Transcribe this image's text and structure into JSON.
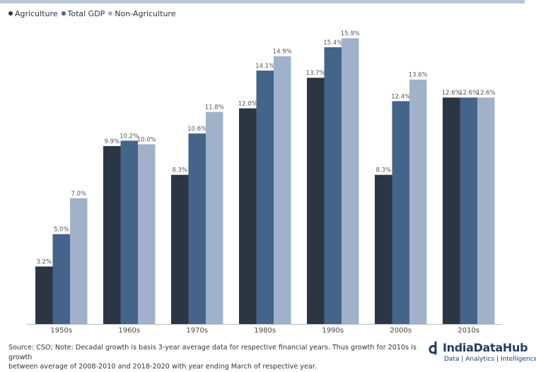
{
  "chart_data": {
    "type": "bar",
    "categories": [
      "1950s",
      "1960s",
      "1970s",
      "1980s",
      "1990s",
      "2000s",
      "2010s"
    ],
    "series": [
      {
        "name": "Agriculture",
        "color": "#2b3645",
        "values": [
          3.2,
          9.9,
          8.3,
          12.0,
          13.7,
          8.3,
          12.6
        ],
        "labels": [
          "3.2%",
          "9.9%",
          "8.3%",
          "12.0%",
          "13.7%",
          "8.3%",
          "12.6%"
        ]
      },
      {
        "name": "Total GDP",
        "color": "#44648a",
        "values": [
          5.0,
          10.2,
          10.6,
          14.1,
          15.4,
          12.4,
          12.6
        ],
        "labels": [
          "5.0%",
          "10.2%",
          "10.6%",
          "14.1%",
          "15.4%",
          "12.4%",
          "12.6%"
        ]
      },
      {
        "name": "Non-Agriculture",
        "color": "#9fb2c9",
        "values": [
          7.0,
          10.0,
          11.8,
          14.9,
          15.9,
          13.6,
          12.6
        ],
        "labels": [
          "7.0%",
          "10.0%",
          "11.8%",
          "14.9%",
          "15.9%",
          "13.6%",
          "12.6%"
        ]
      }
    ],
    "ylim": [
      0,
      16.3
    ],
    "legend_position": "top-left",
    "grid": false
  },
  "footer": {
    "source_line1": "Source: CSO; Note: Decadal growth is basis 3-year average data for respective financial years. Thus growth for 2010s is growth",
    "source_line2": "between average of 2008-2010 and 2018-2020 with year ending March of respective year."
  },
  "logo": {
    "name": "IndiaDataHub",
    "tagline": "Data | Analytics | Intelligence",
    "color": "#1f3f66"
  }
}
